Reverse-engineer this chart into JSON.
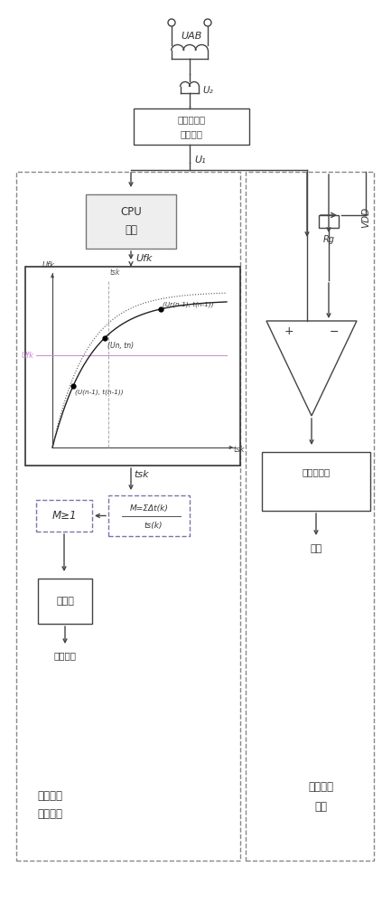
{
  "bg_color": "#ffffff",
  "lc": "#444444",
  "fig_width": 4.23,
  "fig_height": 10.0,
  "UAB_label": "UAB",
  "U2_label": "U₂",
  "U1_label": "U₁",
  "Ufk_label": "Ufk",
  "tsk_label": "tsk",
  "CPU_line1": "CPU",
  "CPU_line2": "采样",
  "transformer_row1": "电压互感器",
  "transformer_row2": "频率转换",
  "comparator_plus": "+",
  "comparator_minus": "−",
  "filter_line1": "滚动滤波器",
  "output_text": "输出",
  "relay_text": "继电器",
  "alarm_text": "报警动作",
  "M_top": "M=ΣΔt(k)",
  "M_bot": "ts(k)",
  "M_cond": "M≥1",
  "left_label1": "频率位移",
  "left_label2": "保护系统",
  "right_label1": "过励保护",
  "right_label2": "系统",
  "Rg_label": "Rg",
  "VDD_label": "VDD",
  "Ufk_axis": "Ufk",
  "tsk_axis": "tsk",
  "Un_tn": "(Un, tn)",
  "Ur_n1_t_n1": "(Ur(n-1), t(n-1))",
  "U_n1_t_n1": "(U(n-1), t(n-1))"
}
